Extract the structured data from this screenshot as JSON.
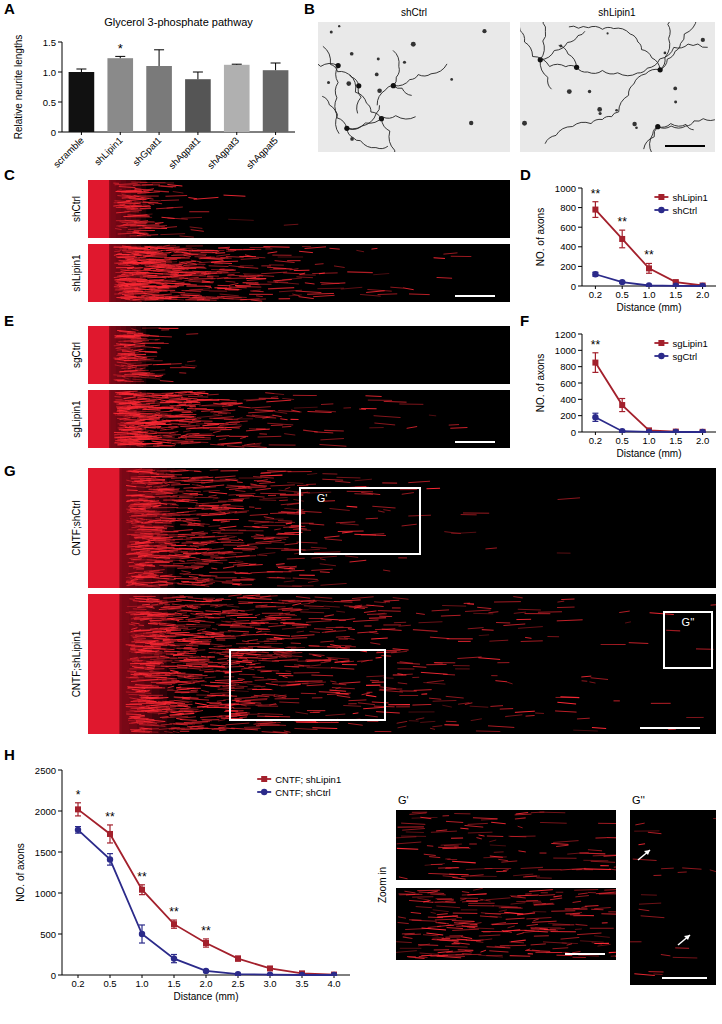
{
  "chart_data": [
    {
      "type": "bar",
      "label": "A",
      "title": "Glycerol 3-phosphate pathway",
      "y_label": "Relative neurite lengths",
      "categories": [
        "scramble",
        "shLipin1",
        "shGpat1",
        "shAgpat1",
        "shAgpat3",
        "shAgpat5"
      ],
      "values": [
        1.0,
        1.23,
        1.1,
        0.88,
        1.12,
        1.03
      ],
      "errors": [
        0.05,
        0.03,
        0.27,
        0.12,
        0.01,
        0.12
      ],
      "colors": [
        "#111111",
        "#8a8a8a",
        "#7a7a7a",
        "#555555",
        "#b0b0b0",
        "#666666"
      ],
      "ylim": [
        0,
        1.5
      ],
      "yticks": [
        0,
        0.5,
        {
          "value": 1,
          "label": "1.0"
        },
        {
          "value": 1.5,
          "label": "1.5"
        }
      ],
      "annotations": [
        {
          "text": "*",
          "at": 1
        }
      ]
    },
    {
      "type": "line",
      "label": "D",
      "x_label": "Distance (mm)",
      "y_label": "NO. of axons",
      "categories": [
        "0.2",
        "0.5",
        "1.0",
        "1.5",
        "2.0"
      ],
      "ylim": [
        0,
        1000
      ],
      "yticks": [
        0,
        200,
        400,
        600,
        800,
        1000
      ],
      "legend": "upper right",
      "series": [
        {
          "name": "shLipin1",
          "color": "#a3202c",
          "marker": "square",
          "values": [
            780,
            480,
            180,
            40,
            5
          ],
          "errors": [
            80,
            90,
            50,
            10,
            2
          ]
        },
        {
          "name": "shCtrl",
          "color": "#2b2a8a",
          "marker": "circle",
          "values": [
            120,
            40,
            5,
            2,
            0
          ],
          "errors": [
            20,
            8,
            2,
            1,
            0
          ]
        }
      ],
      "annotations": [
        {
          "text": "**",
          "at": 0
        },
        {
          "text": "**",
          "at": 1
        },
        {
          "text": "**",
          "at": 2
        }
      ]
    },
    {
      "type": "line",
      "label": "F",
      "x_label": "Distance (mm)",
      "y_label": "NO. of axons",
      "categories": [
        "0.2",
        "0.5",
        "1.0",
        "1.5",
        "2.0"
      ],
      "ylim": [
        0,
        1200
      ],
      "yticks": [
        0,
        200,
        400,
        600,
        800,
        1000,
        1200
      ],
      "legend": "upper right",
      "series": [
        {
          "name": "sgLipin1",
          "color": "#a3202c",
          "marker": "square",
          "values": [
            850,
            330,
            20,
            5,
            2
          ],
          "errors": [
            120,
            80,
            10,
            2,
            1
          ]
        },
        {
          "name": "sgCtrl",
          "color": "#2b2a8a",
          "marker": "circle",
          "values": [
            180,
            10,
            2,
            0,
            0
          ],
          "errors": [
            50,
            5,
            1,
            0,
            0
          ]
        }
      ],
      "annotations": [
        {
          "text": "**",
          "at": 0
        }
      ]
    },
    {
      "type": "line",
      "label": "H",
      "x_label": "Distance (mm)",
      "y_label": "NO. of axons",
      "categories": [
        "0.2",
        "0.5",
        "1.0",
        "1.5",
        "2.0",
        "2.5",
        "3.0",
        "3.5",
        "4.0"
      ],
      "ylim": [
        0,
        2500
      ],
      "yticks": [
        0,
        500,
        1000,
        1500,
        2000,
        2500
      ],
      "legend": "upper right",
      "series": [
        {
          "name": "CNTF; shLipin1",
          "color": "#a3202c",
          "marker": "square",
          "values": [
            2020,
            1720,
            1040,
            620,
            390,
            200,
            80,
            20,
            5
          ],
          "errors": [
            80,
            110,
            60,
            50,
            50,
            30,
            10,
            5,
            2
          ]
        },
        {
          "name": "CNTF; shCtrl",
          "color": "#2b2a8a",
          "marker": "circle",
          "values": [
            1770,
            1410,
            500,
            200,
            50,
            10,
            5,
            0,
            0
          ],
          "errors": [
            40,
            70,
            110,
            50,
            10,
            5,
            2,
            0,
            0
          ]
        }
      ],
      "annotations": [
        {
          "text": "*",
          "at": 0
        },
        {
          "text": "**",
          "at": 1
        },
        {
          "text": "**",
          "at": 2
        },
        {
          "text": "**",
          "at": 3
        },
        {
          "text": "**",
          "at": 4
        }
      ]
    }
  ],
  "images": {
    "B": {
      "label": "B",
      "panels": [
        "shCtrl",
        "shLipin1"
      ]
    },
    "C": {
      "label": "C",
      "panels": [
        "shCtrl",
        "shLipin1"
      ]
    },
    "E": {
      "label": "E",
      "panels": [
        "sgCtrl",
        "sgLipin1"
      ]
    },
    "G": {
      "label": "G",
      "panels": [
        "CNTF;shCtrl",
        "CNTF;shLipin1"
      ],
      "boxes": [
        "G'",
        "G''"
      ]
    },
    "zoom": {
      "label": "Zoom in",
      "panels": [
        "G'",
        "G''"
      ]
    }
  }
}
